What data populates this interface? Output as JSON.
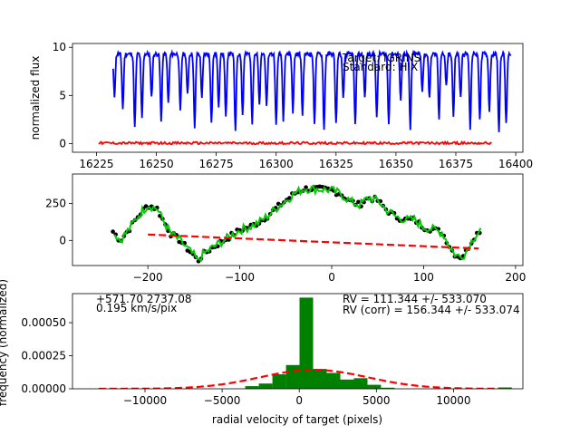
{
  "colors": {
    "target": "#ff0000",
    "standard": "#0000ff",
    "observed": "#000000",
    "fit": "#00cc00",
    "trend": "#ff0000",
    "histogram": "#008000",
    "gaussian": "#ff0000"
  },
  "chart_data": [
    {
      "type": "line",
      "ylabel": "normalized flux",
      "xlabel": "",
      "xlim": [
        16215,
        16403
      ],
      "ylim": [
        -0.9,
        10.4
      ],
      "xticks": [
        16225,
        16250,
        16275,
        16300,
        16325,
        16350,
        16375,
        16400
      ],
      "yticks": [
        0,
        5,
        10
      ],
      "legend": {
        "placement": "top-right",
        "entries": [
          "Target: IGRINS",
          "Standard: HIX"
        ]
      },
      "series": [
        {
          "name": "Standard: HIX",
          "color": "#0000ff",
          "baseline": 9.3,
          "x_range": [
            16232,
            16398
          ],
          "absorption_lines": [
            [
              16232.5,
              4.9
            ],
            [
              16236,
              3.6
            ],
            [
              16241,
              1.6
            ],
            [
              16244,
              2.6
            ],
            [
              16248,
              4.8
            ],
            [
              16252,
              2.3
            ],
            [
              16255,
              4.2
            ],
            [
              16260,
              3.3
            ],
            [
              16263,
              5.1
            ],
            [
              16266,
              1.5
            ],
            [
              16269,
              4.8
            ],
            [
              16273,
              2.1
            ],
            [
              16276,
              3.9
            ],
            [
              16279,
              2.6
            ],
            [
              16283,
              1.4
            ],
            [
              16286,
              3.0
            ],
            [
              16290,
              2.2
            ],
            [
              16293,
              4.0
            ],
            [
              16296,
              3.7
            ],
            [
              16300,
              1.8
            ],
            [
              16303,
              2.5
            ],
            [
              16307,
              3.3
            ],
            [
              16311,
              3.0
            ],
            [
              16316,
              2.2
            ],
            [
              16320,
              1.4
            ],
            [
              16325,
              2.0
            ],
            [
              16328,
              4.6
            ],
            [
              16333,
              1.8
            ],
            [
              16337,
              4.7
            ],
            [
              16342,
              2.6
            ],
            [
              16347,
              2.0
            ],
            [
              16352,
              4.3
            ],
            [
              16356,
              1.4
            ],
            [
              16361,
              5.5
            ],
            [
              16364,
              4.8
            ],
            [
              16368,
              2.6
            ],
            [
              16371,
              5.9
            ],
            [
              16374,
              2.8
            ],
            [
              16377,
              4.7
            ],
            [
              16381,
              1.5
            ],
            [
              16385,
              2.5
            ],
            [
              16389,
              3.5
            ],
            [
              16393,
              1.2
            ],
            [
              16396,
              2.0
            ]
          ]
        },
        {
          "name": "Target: IGRINS",
          "color": "#ff0000",
          "baseline": 0.05,
          "x_range": [
            16226,
            16390
          ]
        }
      ]
    },
    {
      "type": "line",
      "xlabel": "",
      "ylabel": "",
      "xlim": [
        -282,
        208
      ],
      "ylim": [
        -170,
        450
      ],
      "xticks": [
        -200,
        -100,
        0,
        100,
        200
      ],
      "yticks": [
        0,
        250
      ],
      "series": [
        {
          "name": "",
          "role": "observed",
          "style": "markers",
          "color": "#000000",
          "x_range": [
            -238,
            163
          ],
          "x_step": 3
        },
        {
          "name": "",
          "role": "fit",
          "style": "line",
          "color": "#00cc00",
          "x_range": [
            -236,
            162
          ],
          "x_step": 2
        },
        {
          "name": "",
          "role": "trend",
          "style": "dashed",
          "color": "#ff0000",
          "x": [
            -200,
            160
          ],
          "y": [
            40,
            -55
          ]
        }
      ],
      "profile_nodes": [
        [
          -238,
          60
        ],
        [
          -230,
          0
        ],
        [
          -220,
          80
        ],
        [
          -210,
          170
        ],
        [
          -200,
          240
        ],
        [
          -190,
          215
        ],
        [
          -182,
          120
        ],
        [
          -175,
          45
        ],
        [
          -165,
          0
        ],
        [
          -158,
          -50
        ],
        [
          -150,
          -100
        ],
        [
          -146,
          -140
        ],
        [
          -140,
          -95
        ],
        [
          -130,
          -50
        ],
        [
          -120,
          -10
        ],
        [
          -110,
          30
        ],
        [
          -100,
          70
        ],
        [
          -90,
          90
        ],
        [
          -80,
          120
        ],
        [
          -70,
          165
        ],
        [
          -60,
          220
        ],
        [
          -50,
          270
        ],
        [
          -40,
          320
        ],
        [
          -30,
          350
        ],
        [
          -20,
          350
        ],
        [
          -10,
          345
        ],
        [
          0,
          340
        ],
        [
          10,
          315
        ],
        [
          20,
          265
        ],
        [
          30,
          240
        ],
        [
          40,
          290
        ],
        [
          50,
          270
        ],
        [
          60,
          205
        ],
        [
          70,
          160
        ],
        [
          80,
          140
        ],
        [
          90,
          140
        ],
        [
          100,
          90
        ],
        [
          110,
          75
        ],
        [
          120,
          55
        ],
        [
          125,
          0
        ],
        [
          130,
          -60
        ],
        [
          135,
          -100
        ],
        [
          140,
          -110
        ],
        [
          145,
          -90
        ],
        [
          150,
          -30
        ],
        [
          155,
          25
        ],
        [
          160,
          60
        ],
        [
          163,
          80
        ]
      ]
    },
    {
      "type": "bar",
      "xlabel": "radial velocity of target (pixels)",
      "ylabel": "frequency (normalized)",
      "xlim": [
        -14700,
        14500
      ],
      "ylim": [
        0,
        0.00072
      ],
      "xticks": [
        -10000,
        -5000,
        0,
        5000,
        10000
      ],
      "xtick_labels": [
        "−10000",
        "−5000",
        "0",
        "5000",
        "10000"
      ],
      "yticks": [
        0,
        0.00025,
        0.0005
      ],
      "ytick_labels": [
        "0.00000",
        "0.00025",
        "0.00050"
      ],
      "bin_width": 880,
      "bins": [
        [
          -3500,
          2e-05
        ],
        [
          -2620,
          4e-05
        ],
        [
          -1740,
          0.00011
        ],
        [
          -860,
          0.00018
        ],
        [
          20,
          0.00069
        ],
        [
          900,
          0.00015
        ],
        [
          1780,
          0.00012
        ],
        [
          2660,
          7e-05
        ],
        [
          3540,
          8e-05
        ],
        [
          4420,
          3e-05
        ],
        [
          5300,
          8e-06
        ],
        [
          12900,
          1e-05
        ]
      ],
      "gaussian": {
        "mean": 940,
        "sigma": 3500,
        "peak": 0.000143,
        "x_range": [
          -13000,
          13000
        ]
      },
      "annotations": {
        "left_top": "+571.70  2737.08",
        "left_bottom": "0.195 km/s/pix",
        "right_top": "RV = 111.344 +/- 533.070",
        "right_bottom": "RV (corr) = 156.344 +/- 533.074"
      }
    }
  ]
}
